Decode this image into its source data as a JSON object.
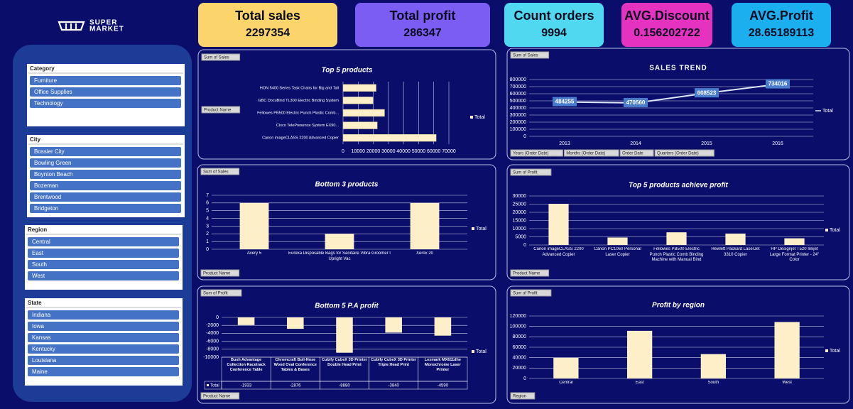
{
  "logo": {
    "line1": "SUPER",
    "line2": "MARKET"
  },
  "kpis": [
    {
      "label": "Total sales",
      "value": 2297354,
      "color": "#fcd46c"
    },
    {
      "label": "Total profit",
      "value": 286347,
      "color": "#7c5df4"
    },
    {
      "label": "Count orders",
      "value": 9994,
      "color": "#4fd8ef"
    },
    {
      "label": "AVG.Discount",
      "value": 0.156202722,
      "color": "#e533c0"
    },
    {
      "label": "AVG.Profit",
      "value": 28.65189113,
      "color": "#1caff0"
    }
  ],
  "slicers": [
    {
      "title": "Category",
      "items": [
        "Furniture",
        "Office Supplies",
        "Technology"
      ]
    },
    {
      "title": "City",
      "items": [
        "Bossier City",
        "Bowling Green",
        "Boynton Beach",
        "Bozeman",
        "Brentwood",
        "Bridgeton"
      ]
    },
    {
      "title": "Region",
      "items": [
        "Central",
        "East",
        "South",
        "West"
      ]
    },
    {
      "title": "State",
      "items": [
        "Indiana",
        "Iowa",
        "Kansas",
        "Kentucky",
        "Louisiana",
        "Maine"
      ]
    }
  ],
  "chart_data": [
    {
      "type": "bar",
      "horizontal": true,
      "title": "Top 5 products",
      "buttons": [
        "Sum of Sales",
        "Product Name"
      ],
      "categories": [
        "HON 5400 Series Task Chairs for Big and Tall",
        "GBC DocuBind TL300 Electric Binding System",
        "Fellowes PB500 Electric Punch Plastic Comb...",
        "Cisco TelePresence System EX90...",
        "Canon imageCLASS 2200 Advanced Copier"
      ],
      "series": [
        {
          "name": "Total",
          "color": "#fdf0c8",
          "values": [
            21870,
            19823,
            27453,
            22638,
            61600
          ]
        }
      ],
      "xlim": [
        0,
        70000
      ],
      "xticks": [
        0,
        10000,
        20000,
        30000,
        40000,
        50000,
        60000,
        70000
      ],
      "grid": true
    },
    {
      "type": "line",
      "title": "SALES TREND",
      "buttons": [
        "Sum of Sales",
        "Years (Order Date)",
        "Months (Order Date)",
        "Order Date",
        "Quarters (Order Date)"
      ],
      "categories": [
        "2013",
        "2014",
        "2015",
        "2016"
      ],
      "series": [
        {
          "name": "Total",
          "color": "#dde6f5",
          "values": [
            484255,
            470560,
            608523,
            734016
          ]
        }
      ],
      "ylim": [
        0,
        800000
      ],
      "yticks": [
        0,
        100000,
        200000,
        300000,
        400000,
        500000,
        600000,
        700000,
        800000
      ],
      "grid": true
    },
    {
      "type": "bar",
      "title": "Bottom 3 products",
      "buttons": [
        "Sum of Sales",
        "Product Name"
      ],
      "categories": [
        "Avery 5",
        "Eureka Disposable Bags for Sanitaire Vibra Groomer I Upright Vac",
        "Xerox 20"
      ],
      "series": [
        {
          "name": "Total",
          "color": "#fdf0c8",
          "values": [
            6,
            2,
            6
          ]
        }
      ],
      "ylim": [
        0,
        7
      ],
      "yticks": [
        0,
        1,
        2,
        3,
        4,
        5,
        6,
        7
      ],
      "grid": true
    },
    {
      "type": "bar",
      "title": "Top 5 products achieve profit",
      "buttons": [
        "Sum of Profit",
        "Product Name"
      ],
      "categories": [
        "Canon imageCLASS 2200 Advanced Copier",
        "Canon PC1060 Personal Laser Copier",
        "Fellowes PB500 Electric Punch Plastic Comb Binding Machine with Manual Bind",
        "Hewlett Packard LaserJet 3310 Copier",
        "HP Designjet T520 Inkjet Large Format Printer - 24\" Color"
      ],
      "series": [
        {
          "name": "Total",
          "color": "#fdf0c8",
          "values": [
            25200,
            4570,
            7753,
            6984,
            4094
          ]
        }
      ],
      "ylim": [
        0,
        30000
      ],
      "yticks": [
        0,
        5000,
        10000,
        15000,
        20000,
        25000,
        30000
      ],
      "grid": true
    },
    {
      "type": "bar",
      "table": true,
      "title": "Bottom 5 P.A profit",
      "buttons": [
        "Sum of Profit",
        "Product Name"
      ],
      "categories": [
        "Bush Advantage Collection Racetrack Conference Table",
        "Chromcraft Bull-Nose Wood Oval Conference Tables & Bases",
        "Cubify CubeX 3D Printer Double Head Print",
        "Cubify CubeX 3D Printer Triple Head Print",
        "Lexmark MX611dhe Monochrome Laser Printer"
      ],
      "series": [
        {
          "name": "Total",
          "color": "#fdf0c8",
          "values": [
            -1933,
            -2876,
            -8880,
            -3840,
            -4590
          ]
        }
      ],
      "ylim": [
        -10000,
        0
      ],
      "yticks": [
        -10000,
        -8000,
        -6000,
        -4000,
        -2000,
        0
      ],
      "grid": true
    },
    {
      "type": "bar",
      "title": "Profit by region",
      "buttons": [
        "Sum of Profit",
        "Region"
      ],
      "categories": [
        "Central",
        "East",
        "South",
        "West"
      ],
      "series": [
        {
          "name": "Total",
          "color": "#fdf0c8",
          "values": [
            39706,
            91523,
            46749,
            108418
          ]
        }
      ],
      "ylim": [
        0,
        120000
      ],
      "yticks": [
        0,
        20000,
        40000,
        60000,
        80000,
        100000,
        120000
      ],
      "grid": true
    }
  ]
}
